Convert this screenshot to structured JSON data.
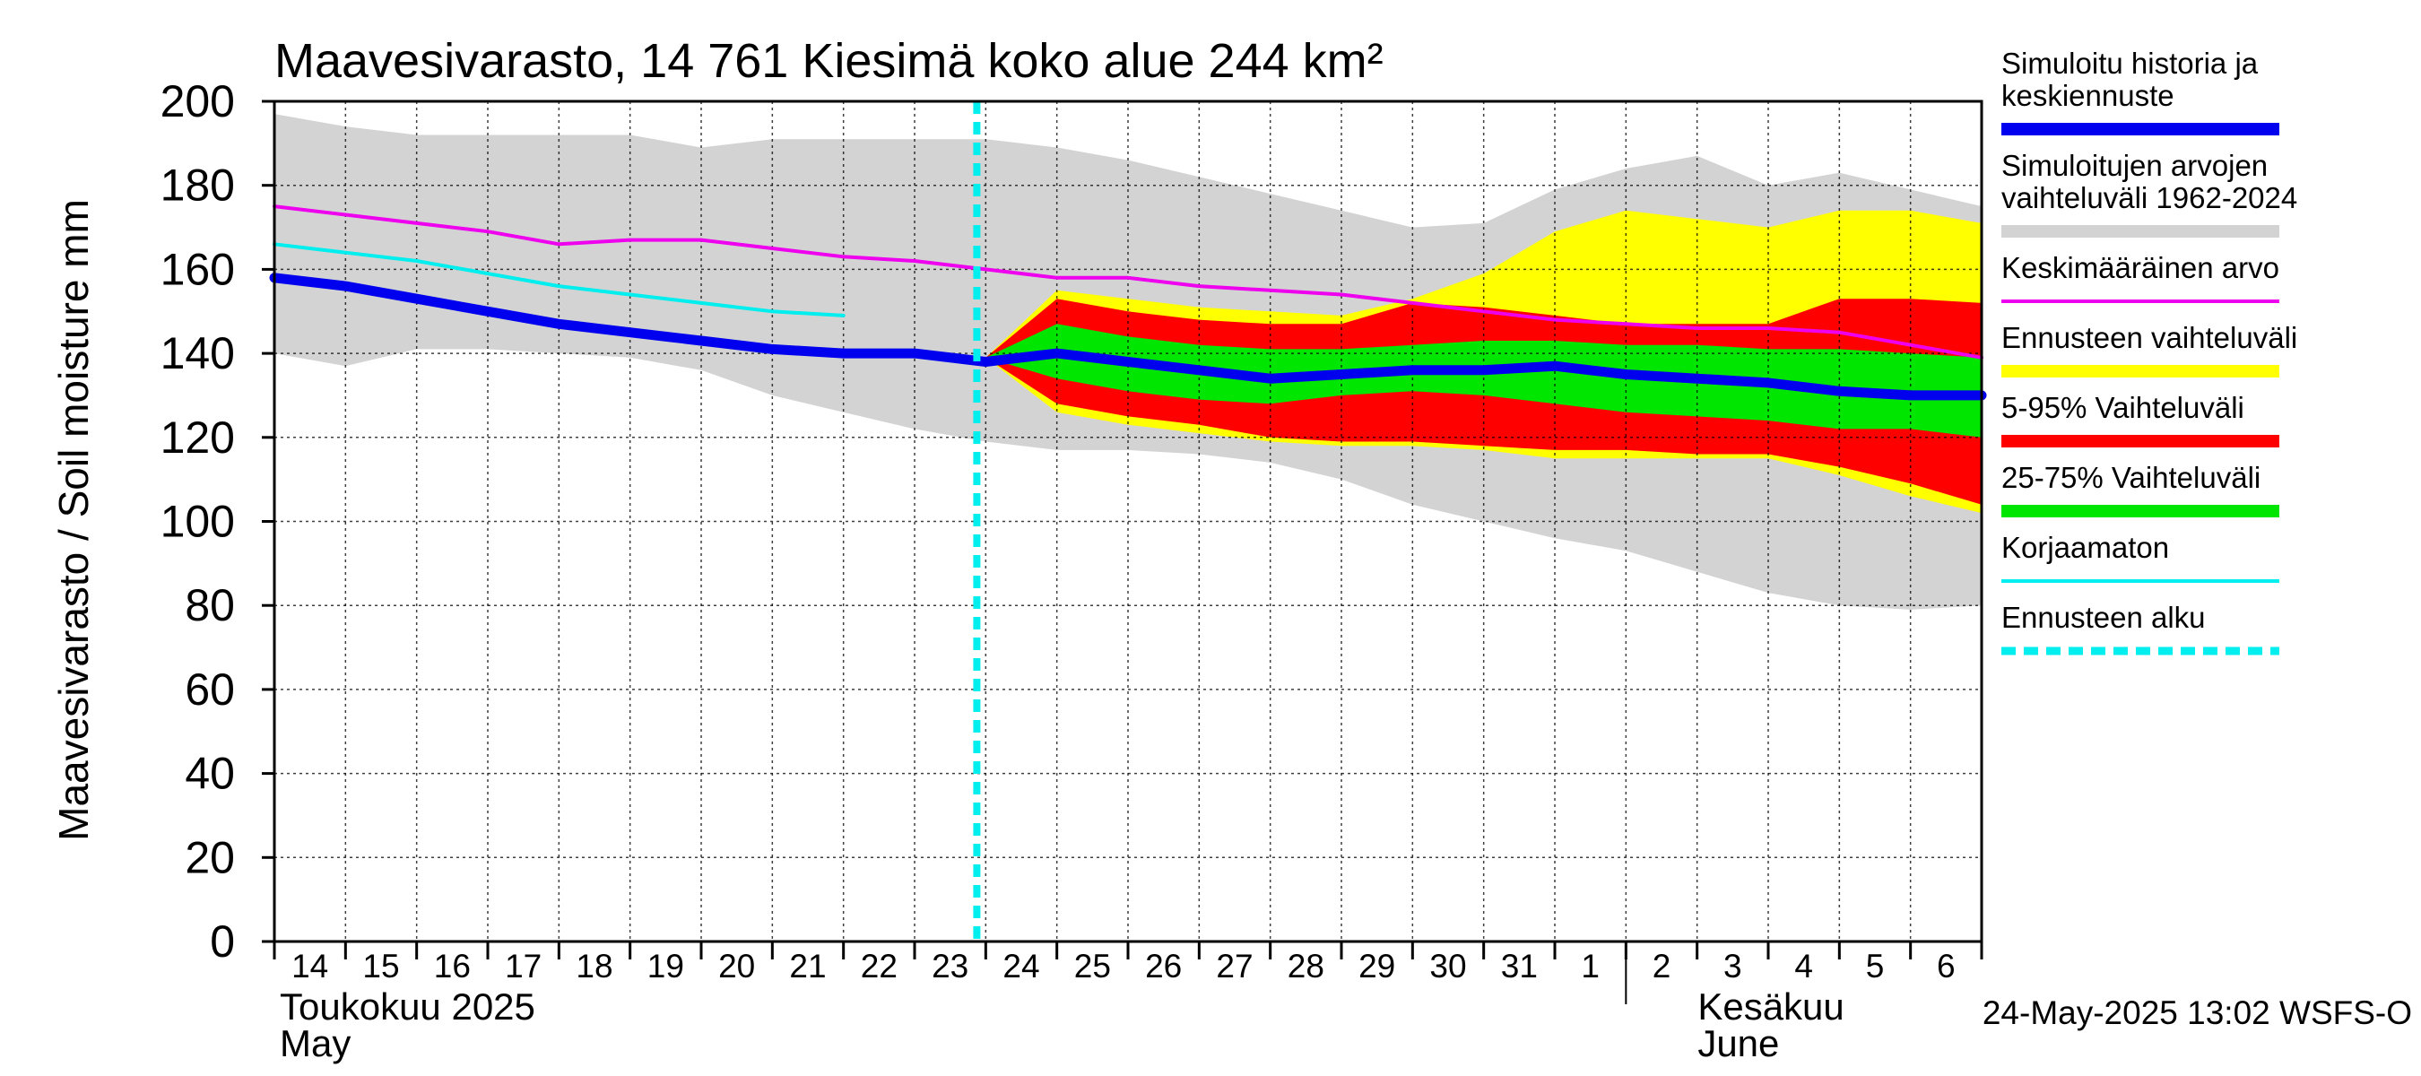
{
  "chart_data": {
    "type": "area",
    "title": "Maavesivarasto, 14 761 Kiesimä koko alue 244 km²",
    "ylabel": "Maavesivarasto / Soil moisture   mm",
    "ylim": [
      0,
      200
    ],
    "yticks": [
      0,
      20,
      40,
      60,
      80,
      100,
      120,
      140,
      160,
      180,
      200
    ],
    "grid": true,
    "legend_position": "right",
    "x_start": "2025-05-14",
    "x_end": "2025-06-07",
    "day_labels": [
      "14",
      "15",
      "16",
      "17",
      "18",
      "19",
      "20",
      "21",
      "22",
      "23",
      "24",
      "25",
      "26",
      "27",
      "28",
      "29",
      "30",
      "31",
      "1",
      "2",
      "3",
      "4",
      "5",
      "6"
    ],
    "month_labels": [
      {
        "line1": "Toukokuu  2025",
        "line2": "May",
        "date": "2025-05-14"
      },
      {
        "line1": "Kesäkuu",
        "line2": "June",
        "date": "2025-06-02"
      }
    ],
    "forecast_start": "2025-05-23T21:00",
    "timestamp": "24-May-2025 13:02 WSFS-O",
    "series": [
      {
        "name": "Simuloitujen arvojen vaihteluväli 1962-2024",
        "color": "#d3d3d3",
        "kind": "band",
        "x": [
          "2025-05-14",
          "2025-05-15",
          "2025-05-16",
          "2025-05-17",
          "2025-05-18",
          "2025-05-19",
          "2025-05-20",
          "2025-05-21",
          "2025-05-22",
          "2025-05-23",
          "2025-05-24",
          "2025-05-25",
          "2025-05-26",
          "2025-05-27",
          "2025-05-28",
          "2025-05-29",
          "2025-05-30",
          "2025-05-31",
          "2025-06-01",
          "2025-06-02",
          "2025-06-03",
          "2025-06-04",
          "2025-06-05",
          "2025-06-06",
          "2025-06-07"
        ],
        "upper": [
          197,
          194,
          192,
          192,
          192,
          192,
          189,
          191,
          191,
          191,
          191,
          189,
          186,
          182,
          178,
          174,
          170,
          171,
          179,
          184,
          187,
          180,
          183,
          179,
          175
        ],
        "lower": [
          140,
          137,
          141,
          141,
          140,
          139,
          136,
          130,
          126,
          122,
          119,
          117,
          117,
          116,
          114,
          110,
          104,
          100,
          96,
          93,
          88,
          83,
          80,
          79,
          80
        ]
      },
      {
        "name": "Ennusteen vaihteluväli",
        "color": "#ffff00",
        "kind": "band",
        "x": [
          "2025-05-24",
          "2025-05-25",
          "2025-05-26",
          "2025-05-27",
          "2025-05-28",
          "2025-05-29",
          "2025-05-30",
          "2025-05-31",
          "2025-06-01",
          "2025-06-02",
          "2025-06-03",
          "2025-06-04",
          "2025-06-05",
          "2025-06-06",
          "2025-06-07"
        ],
        "upper": [
          139,
          155,
          153,
          151,
          150,
          149,
          153,
          159,
          169,
          174,
          172,
          170,
          174,
          174,
          171
        ],
        "lower": [
          139,
          126,
          123,
          121,
          119,
          118,
          118,
          117,
          115,
          115,
          115,
          115,
          111,
          106,
          102
        ]
      },
      {
        "name": "5-95% Vaihteluväli",
        "color": "#ff0000",
        "kind": "band",
        "x": [
          "2025-05-24",
          "2025-05-25",
          "2025-05-26",
          "2025-05-27",
          "2025-05-28",
          "2025-05-29",
          "2025-05-30",
          "2025-05-31",
          "2025-06-01",
          "2025-06-02",
          "2025-06-03",
          "2025-06-04",
          "2025-06-05",
          "2025-06-06",
          "2025-06-07"
        ],
        "upper": [
          139,
          153,
          150,
          148,
          147,
          147,
          152,
          151,
          149,
          147,
          147,
          147,
          153,
          153,
          152
        ],
        "lower": [
          139,
          128,
          125,
          123,
          120,
          119,
          119,
          118,
          117,
          117,
          116,
          116,
          113,
          109,
          104
        ]
      },
      {
        "name": "25-75% Vaihteluväli",
        "color": "#00e600",
        "kind": "band",
        "x": [
          "2025-05-24",
          "2025-05-25",
          "2025-05-26",
          "2025-05-27",
          "2025-05-28",
          "2025-05-29",
          "2025-05-30",
          "2025-05-31",
          "2025-06-01",
          "2025-06-02",
          "2025-06-03",
          "2025-06-04",
          "2025-06-05",
          "2025-06-06",
          "2025-06-07"
        ],
        "upper": [
          139,
          147,
          144,
          142,
          141,
          141,
          142,
          143,
          143,
          142,
          142,
          141,
          141,
          140,
          139
        ],
        "lower": [
          139,
          134,
          131,
          129,
          128,
          130,
          131,
          130,
          128,
          126,
          125,
          124,
          122,
          122,
          120
        ]
      },
      {
        "name": "Keskimääräinen arvo",
        "color": "#ee00ee",
        "kind": "line",
        "width": 4,
        "x": [
          "2025-05-14",
          "2025-05-15",
          "2025-05-16",
          "2025-05-17",
          "2025-05-18",
          "2025-05-19",
          "2025-05-20",
          "2025-05-21",
          "2025-05-22",
          "2025-05-23",
          "2025-05-24",
          "2025-05-25",
          "2025-05-26",
          "2025-05-27",
          "2025-05-28",
          "2025-05-29",
          "2025-05-30",
          "2025-05-31",
          "2025-06-01",
          "2025-06-02",
          "2025-06-03",
          "2025-06-04",
          "2025-06-05",
          "2025-06-06",
          "2025-06-07"
        ],
        "values": [
          175,
          173,
          171,
          169,
          166,
          167,
          167,
          165,
          163,
          162,
          160,
          158,
          158,
          156,
          155,
          154,
          152,
          150,
          148,
          147,
          146,
          146,
          145,
          142,
          139
        ]
      },
      {
        "name": "Korjaamaton",
        "color": "#00eeee",
        "kind": "line",
        "width": 4,
        "x": [
          "2025-05-14",
          "2025-05-15",
          "2025-05-16",
          "2025-05-17",
          "2025-05-18",
          "2025-05-19",
          "2025-05-20",
          "2025-05-21",
          "2025-05-22"
        ],
        "values": [
          166,
          164,
          162,
          159,
          156,
          154,
          152,
          150,
          149
        ]
      },
      {
        "name": "Simuloitu historia ja keskiennuste",
        "color": "#0000ee",
        "kind": "line",
        "width": 11,
        "x": [
          "2025-05-14",
          "2025-05-15",
          "2025-05-16",
          "2025-05-17",
          "2025-05-18",
          "2025-05-19",
          "2025-05-20",
          "2025-05-21",
          "2025-05-22",
          "2025-05-23",
          "2025-05-24",
          "2025-05-25",
          "2025-05-26",
          "2025-05-27",
          "2025-05-28",
          "2025-05-29",
          "2025-05-30",
          "2025-05-31",
          "2025-06-01",
          "2025-06-02",
          "2025-06-03",
          "2025-06-04",
          "2025-06-05",
          "2025-06-06",
          "2025-06-07"
        ],
        "values": [
          158,
          156,
          153,
          150,
          147,
          145,
          143,
          141,
          140,
          140,
          138,
          140,
          138,
          136,
          134,
          135,
          136,
          136,
          137,
          135,
          134,
          133,
          131,
          130,
          130
        ]
      }
    ],
    "legend": [
      {
        "label": "Simuloitu historia ja keskiennuste",
        "color": "#0000ee",
        "style": "thick"
      },
      {
        "label": "Simuloitujen arvojen vaihteluväli 1962-2024",
        "color": "#d3d3d3",
        "style": "thick"
      },
      {
        "label": "Keskimääräinen arvo",
        "color": "#ee00ee",
        "style": "thin"
      },
      {
        "label": "Ennusteen vaihteluväli",
        "color": "#ffff00",
        "style": "thick"
      },
      {
        "label": "5-95% Vaihteluväli",
        "color": "#ff0000",
        "style": "thick"
      },
      {
        "label": "25-75% Vaihteluväli",
        "color": "#00e600",
        "style": "thick"
      },
      {
        "label": "Korjaamaton",
        "color": "#00eeee",
        "style": "thin"
      },
      {
        "label": "Ennusteen alku",
        "color": "#00eeee",
        "style": "dashed"
      }
    ]
  }
}
